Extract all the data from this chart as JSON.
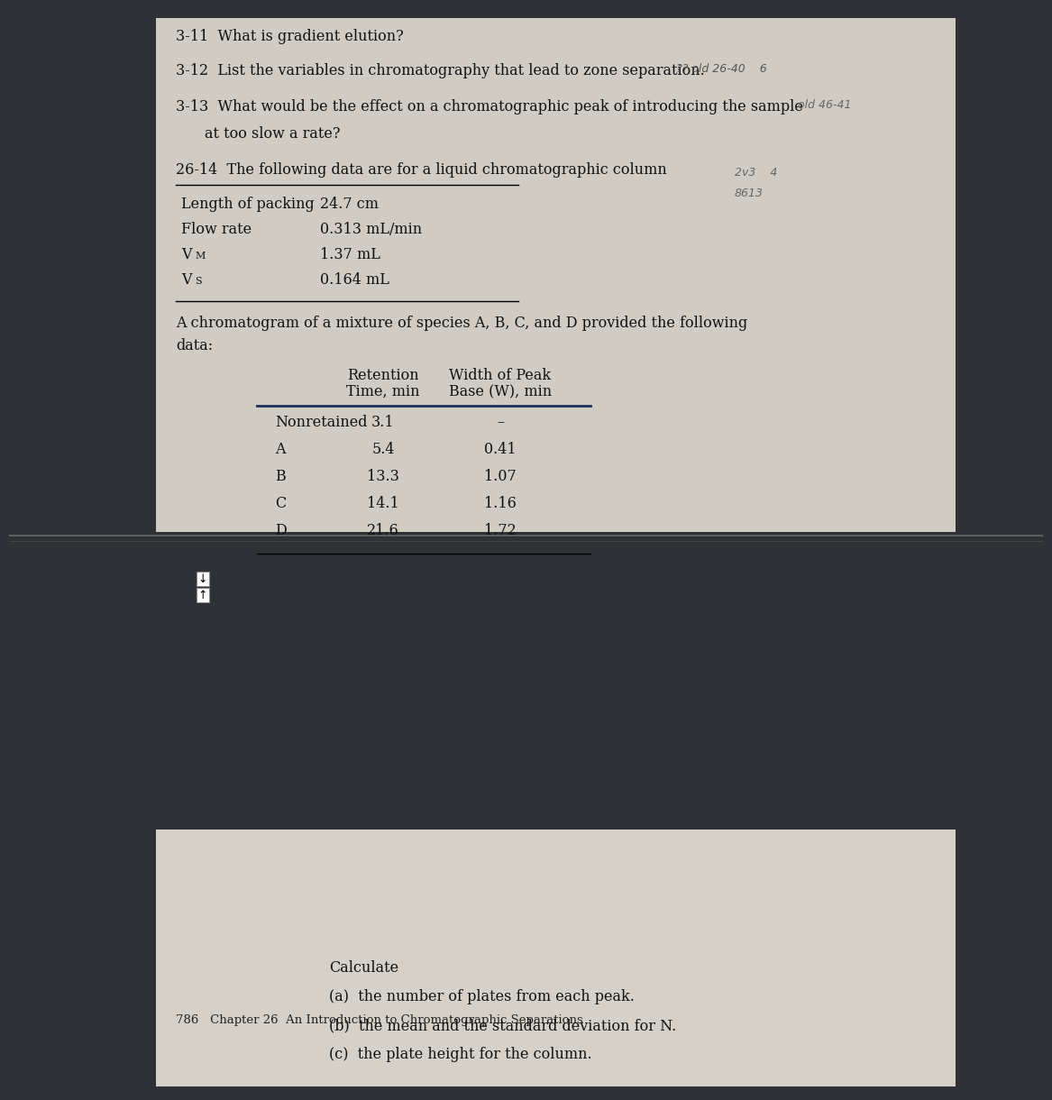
{
  "bg_dark": "#2e3135",
  "bg_page1": "#d0cbc3",
  "bg_page2": "#d5d0c8",
  "q11": "3-11  What is gradient elution?",
  "q12": "3-12  List the variables in chromatography that lead to zone separation.",
  "q12_hw": "?? old 26-40    6",
  "q13": "3-13  What would be the effect on a chromatographic peak of introducing the sample",
  "q13b": "at too slow a rate?",
  "q13_hw": "old 46-41",
  "q14": "26-14  The following data are for a liquid chromatographic column",
  "q14_hw1": "2v3    4",
  "q14_hw2": "8613",
  "table1": [
    [
      "Length of packing",
      "24.7 cm"
    ],
    [
      "Flow rate",
      "0.313 mL/min"
    ],
    [
      "VM",
      "1.37 mL"
    ],
    [
      "VS",
      "0.164 mL"
    ]
  ],
  "intro": "A chromatogram of a mixture of species A, B, C, and D provided the following",
  "intro2": "data:",
  "col_hdr1a": "Retention",
  "col_hdr1b": "Time, min",
  "col_hdr2a": "Width of Peak",
  "col_hdr2b": "Base (W), min",
  "table2": [
    [
      "Nonretained",
      "3.1",
      "–"
    ],
    [
      "A",
      "5.4",
      "0.41"
    ],
    [
      "B",
      "13.3",
      "1.07"
    ],
    [
      "C",
      "14.1",
      "1.16"
    ],
    [
      "D",
      "21.6",
      "1.72"
    ]
  ],
  "p2_header": "786   Chapter 26  An Introduction to Chromatographic Separations",
  "calc0": "Calculate",
  "calc1": "(a)  the number of plates from each peak.",
  "calc2": "(b)  the mean and the standard deviation for N.",
  "calc3": "(c)  the plate height for the column."
}
